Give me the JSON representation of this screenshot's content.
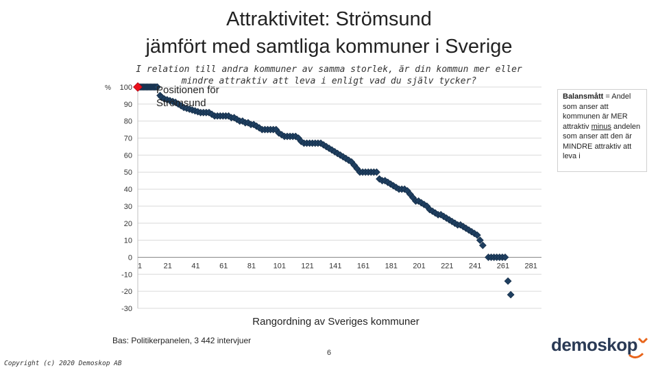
{
  "slide": {
    "title_line1": "Attraktivitet: Strömsund",
    "title_line2": "jämfört med samtliga kommuner i Sverige",
    "question": "I relation till andra kommuner av samma storlek, är din kommun mer eller mindre attraktiv att leva i enligt vad du själv tycker?",
    "bas": "Bas: Politikerpanelen, 3 442 intervjuer",
    "page_number": "6",
    "copyright": "Copyright (c) 2020 Demoskop AB",
    "logo_text": "demoskop"
  },
  "legend": {
    "bold": "Balansmått",
    "text1": " = Andel som anser att kommunen är MER attraktiv ",
    "underlined": "minus",
    "text2": " andelen som anser att den är MINDRE attraktiv att leva i"
  },
  "colors": {
    "series": "#1f3f60",
    "highlight": "#e8101a",
    "grid": "#d9d9d9",
    "axis": "#bfbfbf"
  },
  "chart_data": {
    "type": "scatter",
    "ylabel": "%",
    "xlabel": "Rangordning av Sveriges kommuner",
    "annotation": "Positionen för Strömsund",
    "ylim": [
      -30,
      100
    ],
    "yticks": [
      100,
      90,
      80,
      70,
      60,
      50,
      40,
      30,
      20,
      10,
      0,
      -10,
      -20,
      -30
    ],
    "xlim": [
      1,
      290
    ],
    "xticks": [
      1,
      21,
      41,
      61,
      81,
      101,
      121,
      141,
      161,
      181,
      201,
      221,
      241,
      261,
      281
    ],
    "grid": true,
    "highlight_point": {
      "rank": 1,
      "value": 100,
      "label": "Strömsund"
    },
    "series": [
      {
        "points_rank_value": [
          [
            1,
            100
          ],
          [
            2,
            100
          ],
          [
            3,
            100
          ],
          [
            4,
            100
          ],
          [
            5,
            100
          ],
          [
            6,
            100
          ],
          [
            7,
            100
          ],
          [
            8,
            100
          ],
          [
            9,
            100
          ],
          [
            10,
            100
          ],
          [
            11,
            100
          ],
          [
            12,
            100
          ],
          [
            13,
            100
          ],
          [
            14,
            100
          ],
          [
            15,
            100
          ],
          [
            17,
            95
          ],
          [
            18,
            94
          ],
          [
            20,
            93
          ],
          [
            22,
            92.5
          ],
          [
            24,
            92
          ],
          [
            26,
            91.5
          ],
          [
            28,
            91
          ],
          [
            30,
            90
          ],
          [
            32,
            89
          ],
          [
            34,
            88
          ],
          [
            36,
            87.5
          ],
          [
            38,
            87
          ],
          [
            40,
            86.5
          ],
          [
            42,
            86
          ],
          [
            44,
            85.5
          ],
          [
            46,
            85
          ],
          [
            48,
            85
          ],
          [
            50,
            85
          ],
          [
            52,
            85
          ],
          [
            54,
            84
          ],
          [
            56,
            83
          ],
          [
            58,
            83
          ],
          [
            60,
            83
          ],
          [
            62,
            83
          ],
          [
            64,
            83
          ],
          [
            66,
            83
          ],
          [
            68,
            82
          ],
          [
            70,
            82
          ],
          [
            72,
            81
          ],
          [
            74,
            80
          ],
          [
            76,
            80
          ],
          [
            78,
            79
          ],
          [
            80,
            79
          ],
          [
            82,
            78
          ],
          [
            84,
            78
          ],
          [
            86,
            77
          ],
          [
            88,
            76
          ],
          [
            90,
            75
          ],
          [
            92,
            75
          ],
          [
            94,
            75
          ],
          [
            96,
            75
          ],
          [
            98,
            75
          ],
          [
            100,
            75
          ],
          [
            102,
            73
          ],
          [
            104,
            72
          ],
          [
            106,
            71
          ],
          [
            108,
            71
          ],
          [
            110,
            71
          ],
          [
            112,
            71
          ],
          [
            114,
            71
          ],
          [
            116,
            70
          ],
          [
            118,
            68
          ],
          [
            120,
            67
          ],
          [
            122,
            67
          ],
          [
            124,
            67
          ],
          [
            126,
            67
          ],
          [
            128,
            67
          ],
          [
            130,
            67
          ],
          [
            132,
            67
          ],
          [
            134,
            66
          ],
          [
            136,
            65
          ],
          [
            138,
            64
          ],
          [
            140,
            63
          ],
          [
            142,
            62
          ],
          [
            144,
            61
          ],
          [
            146,
            60
          ],
          [
            148,
            59
          ],
          [
            150,
            58
          ],
          [
            152,
            57
          ],
          [
            154,
            56
          ],
          [
            156,
            54
          ],
          [
            158,
            52
          ],
          [
            160,
            50
          ],
          [
            162,
            50
          ],
          [
            164,
            50
          ],
          [
            166,
            50
          ],
          [
            168,
            50
          ],
          [
            170,
            50
          ],
          [
            172,
            50
          ],
          [
            174,
            46
          ],
          [
            176,
            45
          ],
          [
            178,
            45
          ],
          [
            180,
            44
          ],
          [
            182,
            43
          ],
          [
            184,
            42
          ],
          [
            186,
            41
          ],
          [
            188,
            40
          ],
          [
            190,
            40
          ],
          [
            192,
            40
          ],
          [
            194,
            39
          ],
          [
            196,
            37
          ],
          [
            198,
            35
          ],
          [
            200,
            33
          ],
          [
            202,
            33
          ],
          [
            204,
            32
          ],
          [
            206,
            31
          ],
          [
            208,
            30
          ],
          [
            210,
            28
          ],
          [
            212,
            27
          ],
          [
            214,
            26
          ],
          [
            216,
            25
          ],
          [
            218,
            25
          ],
          [
            220,
            24
          ],
          [
            222,
            23
          ],
          [
            224,
            22
          ],
          [
            226,
            21
          ],
          [
            228,
            20
          ],
          [
            230,
            19
          ],
          [
            232,
            19
          ],
          [
            234,
            18
          ],
          [
            236,
            17
          ],
          [
            238,
            16
          ],
          [
            240,
            15
          ],
          [
            242,
            14
          ],
          [
            244,
            13
          ],
          [
            246,
            10
          ],
          [
            248,
            7
          ],
          [
            252,
            0
          ],
          [
            254,
            0
          ],
          [
            256,
            0
          ],
          [
            258,
            0
          ],
          [
            260,
            0
          ],
          [
            262,
            0
          ],
          [
            264,
            0
          ],
          [
            266,
            -14
          ],
          [
            268,
            -22
          ]
        ]
      }
    ]
  }
}
